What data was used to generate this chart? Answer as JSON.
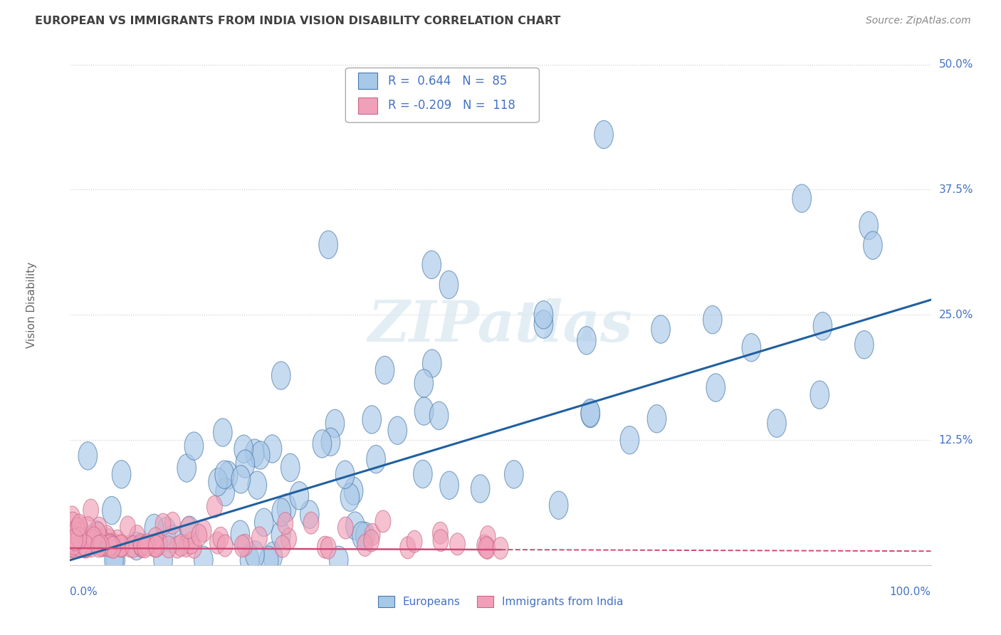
{
  "title": "EUROPEAN VS IMMIGRANTS FROM INDIA VISION DISABILITY CORRELATION CHART",
  "source_text": "Source: ZipAtlas.com",
  "ylabel": "Vision Disability",
  "xlim": [
    0.0,
    1.0
  ],
  "ylim": [
    0.0,
    0.52
  ],
  "european_R": 0.644,
  "european_N": 85,
  "india_R": -0.209,
  "india_N": 118,
  "blue_fill": "#a8c8e8",
  "blue_edge": "#4878a8",
  "pink_fill": "#f0a0b8",
  "pink_edge": "#c86888",
  "blue_line_color": "#2060a0",
  "pink_line_color": "#d04878",
  "legend_label_european": "Europeans",
  "legend_label_india": "Immigrants from India",
  "watermark": "ZIPatlas",
  "background_color": "#ffffff",
  "grid_color": "#cccccc",
  "title_color": "#404040",
  "axis_label_color": "#4472c4",
  "legend_text_color": "#4472c4",
  "source_color": "#888888",
  "ylabel_color": "#666666"
}
